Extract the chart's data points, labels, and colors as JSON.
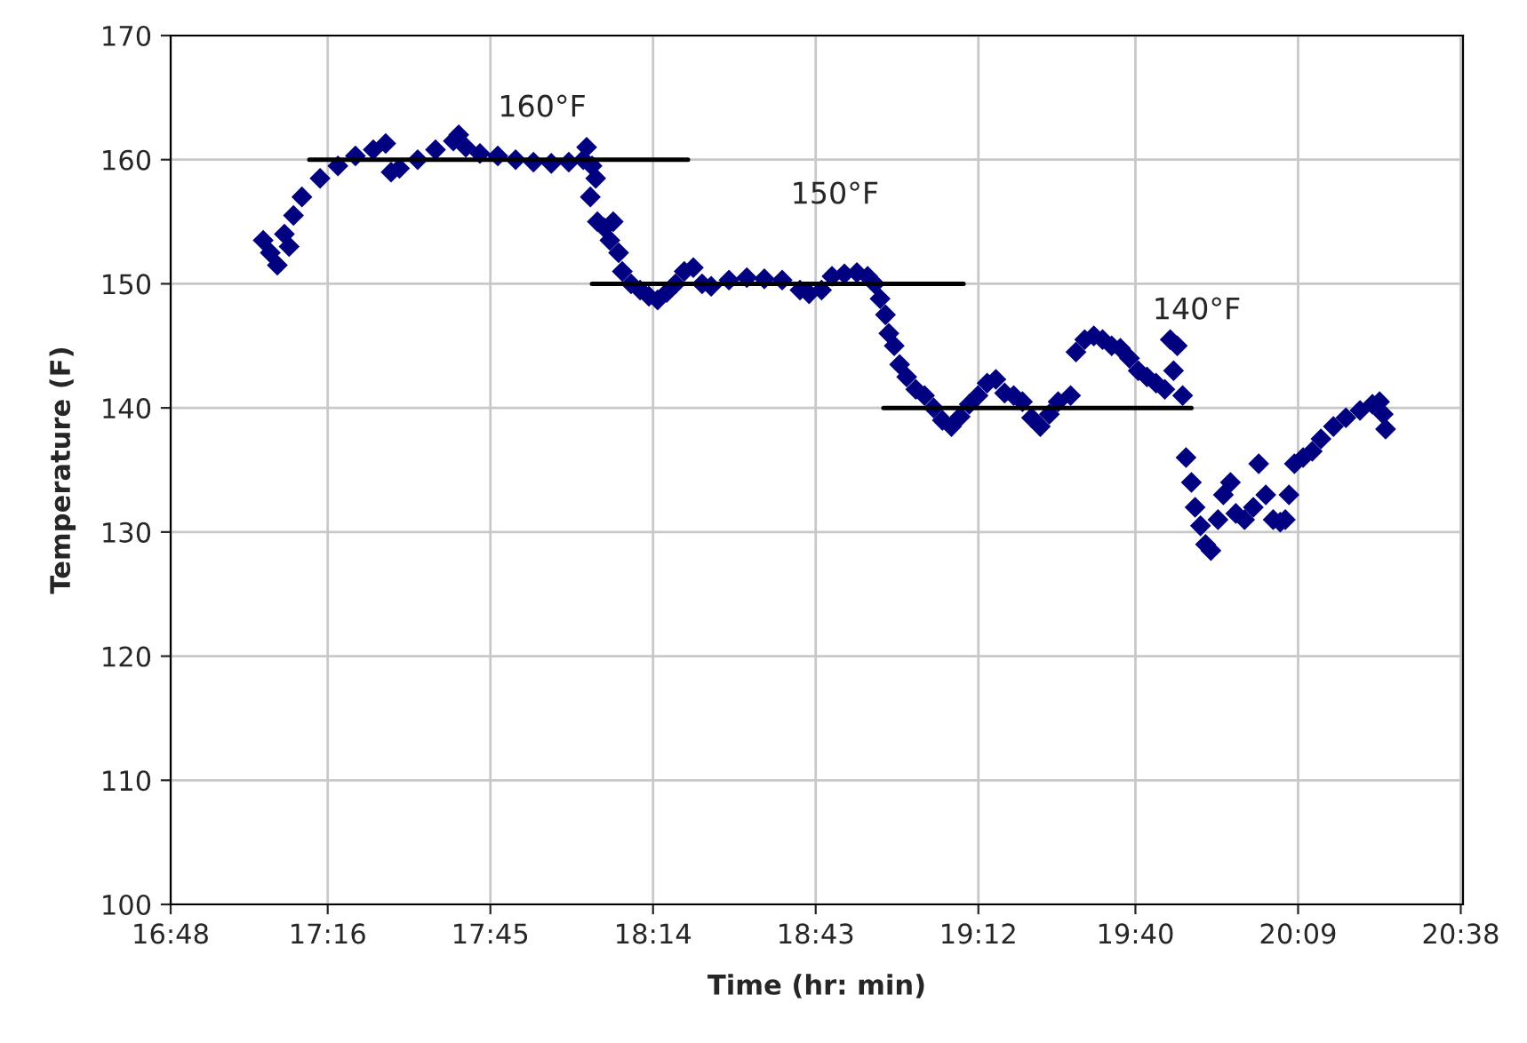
{
  "chart_data": {
    "type": "scatter",
    "xlabel": "Time (hr: min)",
    "ylabel": "Temperature (F)",
    "xlim": [
      16.8,
      20.64
    ],
    "ylim": [
      100,
      170
    ],
    "xticks": [
      {
        "value": 16.8,
        "label": "16:48"
      },
      {
        "value": 17.266667,
        "label": "17:16"
      },
      {
        "value": 17.75,
        "label": "17:45"
      },
      {
        "value": 18.233333,
        "label": "18:14"
      },
      {
        "value": 18.716667,
        "label": "18:43"
      },
      {
        "value": 19.2,
        "label": "19:12"
      },
      {
        "value": 19.666667,
        "label": "19:40"
      },
      {
        "value": 20.15,
        "label": "20:09"
      },
      {
        "value": 20.633333,
        "label": "20:38"
      }
    ],
    "yticks": [
      100,
      110,
      120,
      130,
      140,
      150,
      160,
      170
    ],
    "grid": true,
    "marker": "diamond",
    "series": [
      {
        "color": "#000080",
        "x": [
          17.075,
          17.096,
          17.117,
          17.138,
          17.152,
          17.165,
          17.19,
          17.244,
          17.297,
          17.349,
          17.402,
          17.439,
          17.455,
          17.48,
          17.534,
          17.587,
          17.64,
          17.656,
          17.677,
          17.719,
          17.772,
          17.825,
          17.878,
          17.931,
          17.983,
          18.026,
          18.036,
          18.052,
          18.063,
          18.047,
          18.068,
          18.089,
          18.115,
          18.105,
          18.131,
          18.142,
          18.168,
          18.195,
          18.221,
          18.247,
          18.274,
          18.3,
          18.326,
          18.353,
          18.379,
          18.406,
          18.459,
          18.512,
          18.564,
          18.617,
          18.67,
          18.697,
          18.734,
          18.765,
          18.802,
          18.839,
          18.871,
          18.892,
          18.908,
          18.924,
          18.934,
          18.95,
          18.966,
          18.987,
          19.014,
          19.04,
          19.067,
          19.093,
          19.12,
          19.146,
          19.173,
          19.199,
          19.226,
          19.252,
          19.278,
          19.305,
          19.331,
          19.358,
          19.384,
          19.411,
          19.437,
          19.474,
          19.49,
          19.516,
          19.543,
          19.569,
          19.596,
          19.622,
          19.649,
          19.675,
          19.701,
          19.728,
          19.754,
          19.77,
          19.791,
          19.78,
          19.807,
          19.817,
          19.833,
          19.844,
          19.86,
          19.875,
          19.891,
          19.912,
          19.928,
          19.949,
          19.965,
          19.991,
          20.017,
          20.033,
          20.054,
          20.076,
          20.097,
          20.112,
          20.123,
          20.139,
          20.165,
          20.192,
          20.218,
          20.255,
          20.292,
          20.334,
          20.371,
          20.392,
          20.403,
          20.41
        ],
        "values": [
          153.5,
          152.5,
          151.5,
          154,
          153,
          155.5,
          157,
          158.5,
          159.5,
          160.3,
          160.8,
          161.3,
          159,
          159.3,
          160,
          160.8,
          161.5,
          162,
          161,
          160.5,
          160.3,
          160,
          159.8,
          159.7,
          159.8,
          160,
          161,
          159.5,
          158.5,
          157,
          155,
          154.5,
          155,
          153.5,
          152.5,
          151,
          150,
          149.5,
          149,
          148.7,
          149.3,
          150,
          151,
          151.3,
          150,
          149.8,
          150.3,
          150.5,
          150.4,
          150.3,
          149.5,
          149.2,
          149.5,
          150.6,
          150.8,
          150.9,
          150.6,
          150,
          148.8,
          147.5,
          146,
          145,
          143.5,
          142.5,
          141.5,
          141,
          140,
          139,
          138.5,
          139.3,
          140.3,
          141,
          142,
          142.3,
          141.2,
          141,
          140.5,
          139.2,
          138.5,
          139.5,
          140.5,
          141,
          144.5,
          145.5,
          145.8,
          145.5,
          145,
          144.8,
          144,
          143,
          142.5,
          142,
          141.5,
          145.5,
          145,
          143,
          141,
          136,
          134,
          132,
          130.5,
          129,
          128.5,
          131,
          133,
          134,
          131.5,
          131,
          132,
          135.5,
          133,
          131,
          130.8,
          131,
          133,
          135.5,
          136,
          136.5,
          137.5,
          138.5,
          139.2,
          139.8,
          140.3,
          140.5,
          139.5,
          138.3
        ]
      },
      {
        "type": "line",
        "marker": "none",
        "color": "#000000",
        "x": [
          17.212,
          18.337
        ],
        "values": [
          160,
          160
        ]
      },
      {
        "type": "line",
        "marker": "none",
        "color": "#000000",
        "x": [
          18.052,
          19.156
        ],
        "values": [
          150,
          150
        ]
      },
      {
        "type": "line",
        "marker": "none",
        "color": "#000000",
        "x": [
          18.918,
          19.833
        ],
        "values": [
          140,
          140
        ]
      }
    ],
    "annotations": [
      "160°F",
      "150°F",
      "140°F"
    ]
  }
}
